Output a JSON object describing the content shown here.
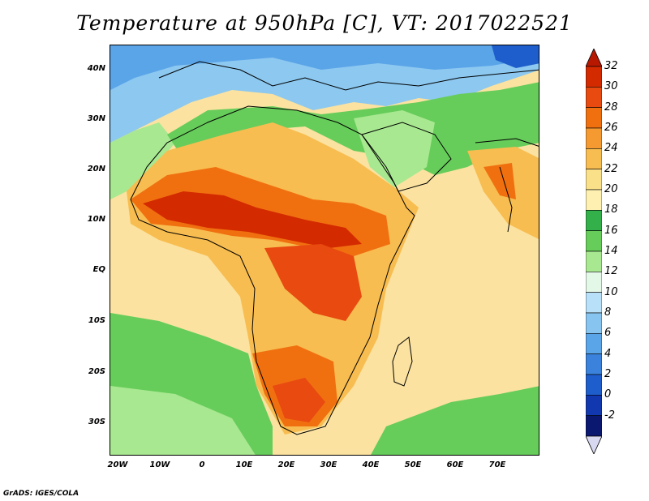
{
  "title": "Temperature at 950hPa [C], VT: 2017022521",
  "credit": "GrADS: IGES/COLA",
  "map": {
    "variable": "Temperature at 950hPa",
    "units": "C",
    "valid_time": "2017022521",
    "lon_range": [
      -22,
      80
    ],
    "lat_range": [
      -37,
      45
    ],
    "lat_ticks": [
      {
        "value": 40,
        "label": "40N"
      },
      {
        "value": 30,
        "label": "30N"
      },
      {
        "value": 20,
        "label": "20N"
      },
      {
        "value": 10,
        "label": "10N"
      },
      {
        "value": 0,
        "label": "EQ"
      },
      {
        "value": -10,
        "label": "10S"
      },
      {
        "value": -20,
        "label": "20S"
      },
      {
        "value": -30,
        "label": "30S"
      }
    ],
    "lon_ticks": [
      {
        "value": -20,
        "label": "20W"
      },
      {
        "value": -10,
        "label": "10W"
      },
      {
        "value": 0,
        "label": "0"
      },
      {
        "value": 10,
        "label": "10E"
      },
      {
        "value": 20,
        "label": "20E"
      },
      {
        "value": 30,
        "label": "30E"
      },
      {
        "value": 40,
        "label": "40E"
      },
      {
        "value": 50,
        "label": "50E"
      },
      {
        "value": 60,
        "label": "60E"
      },
      {
        "value": 70,
        "label": "70E"
      }
    ]
  },
  "colorbar": {
    "labels": [
      "32",
      "30",
      "28",
      "26",
      "24",
      "22",
      "20",
      "18",
      "16",
      "14",
      "12",
      "10",
      "8",
      "6",
      "4",
      "2",
      "0",
      "-2"
    ],
    "colors": [
      "#d42a00",
      "#e84a10",
      "#f07010",
      "#f59a30",
      "#f8bd50",
      "#fbe08a",
      "#fdf0b0",
      "#33b04a",
      "#66cc5a",
      "#a8e890",
      "#e4f8e8",
      "#b8e0f8",
      "#88c4f0",
      "#5aa4e8",
      "#3a82dc",
      "#1e5ecc",
      "#1238b0",
      "#0a1870"
    ],
    "top_arrow_color": "#b81800",
    "bottom_arrow_color": "#d8d8f0"
  }
}
